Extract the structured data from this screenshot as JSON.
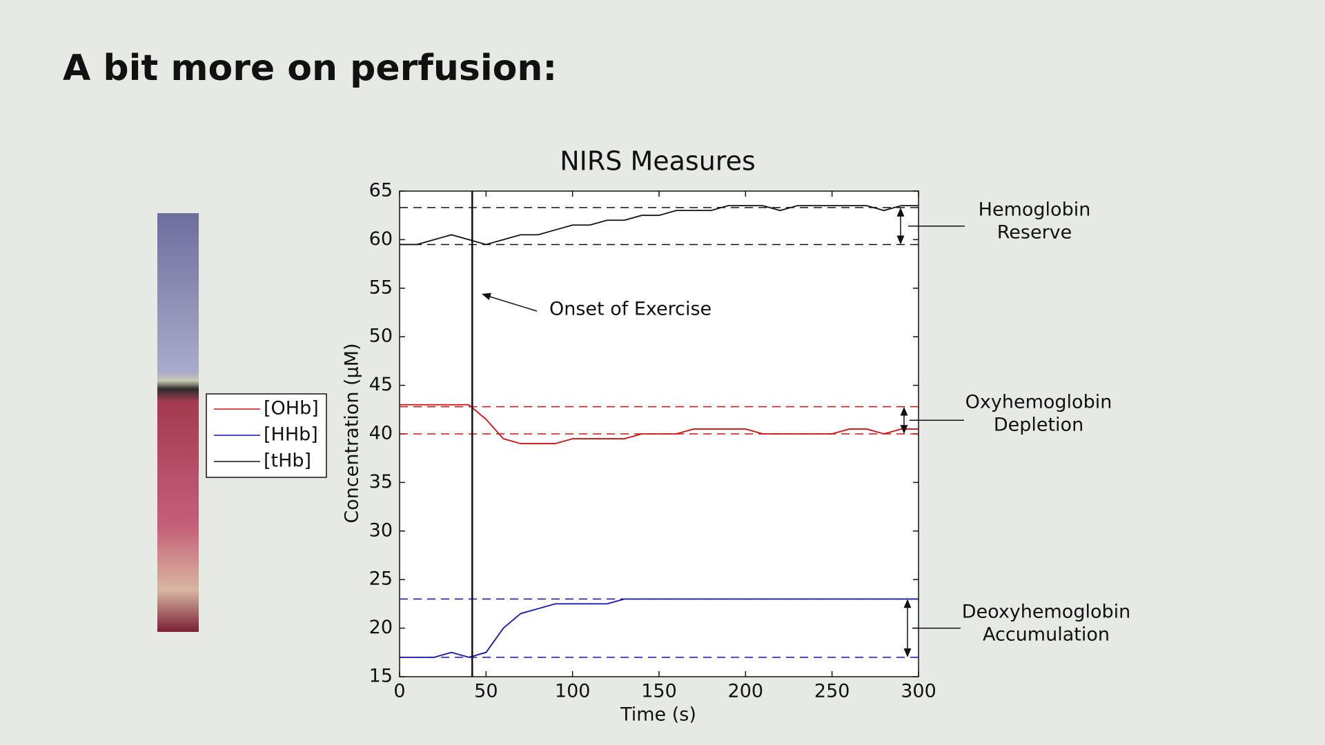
{
  "slide_title": "A bit more on perfusion:",
  "chart_data": {
    "type": "line",
    "title": "NIRS Measures",
    "x_label": "Time (s)",
    "y_label": "Concentration (μM)",
    "x": [
      0,
      10,
      20,
      30,
      40,
      50,
      60,
      70,
      80,
      90,
      100,
      110,
      120,
      130,
      140,
      150,
      160,
      170,
      180,
      190,
      200,
      210,
      220,
      230,
      240,
      250,
      260,
      270,
      280,
      290,
      300
    ],
    "series": [
      {
        "name": "[OHb]",
        "color": "#d01010",
        "values": [
          43,
          43,
          43,
          43,
          43,
          41.5,
          39.5,
          39,
          39,
          39,
          39.5,
          39.5,
          39.5,
          39.5,
          40,
          40,
          40,
          40.5,
          40.5,
          40.5,
          40.5,
          40,
          40,
          40,
          40,
          40,
          40.5,
          40.5,
          40,
          40.5,
          40.5
        ]
      },
      {
        "name": "[HHb]",
        "color": "#1010b0",
        "values": [
          17,
          17,
          17,
          17.5,
          17,
          17.5,
          20,
          21.5,
          22,
          22.5,
          22.5,
          22.5,
          22.5,
          23,
          23,
          23,
          23,
          23,
          23,
          23,
          23,
          23,
          23,
          23,
          23,
          23,
          23,
          23,
          23,
          23,
          23
        ]
      },
      {
        "name": "[tHb]",
        "color": "#111111",
        "values": [
          59.5,
          59.5,
          60,
          60.5,
          60,
          59.5,
          60,
          60.5,
          60.5,
          61,
          61.5,
          61.5,
          62,
          62,
          62.5,
          62.5,
          63,
          63,
          63,
          63.5,
          63.5,
          63.5,
          63,
          63.5,
          63.5,
          63.5,
          63.5,
          63.5,
          63,
          63.5,
          63.5
        ]
      }
    ],
    "reference_lines": [
      {
        "y": 63.3,
        "color": "#111111"
      },
      {
        "y": 59.5,
        "color": "#111111"
      },
      {
        "y": 42.8,
        "color": "#d01010"
      },
      {
        "y": 40,
        "color": "#d01010"
      },
      {
        "y": 23,
        "color": "#1010b0"
      },
      {
        "y": 17,
        "color": "#1010b0"
      }
    ],
    "event_x": 42,
    "annotations": [
      {
        "text": [
          "Onset of Exercise"
        ]
      },
      {
        "text": [
          "Hemoglobin",
          "Reserve"
        ]
      },
      {
        "text": [
          "Oxyhemoglobin",
          "Depletion"
        ]
      },
      {
        "text": [
          "Deoxyhemoglobin",
          "Accumulation"
        ]
      }
    ],
    "xlim": [
      0,
      300
    ],
    "xticks": [
      0,
      50,
      100,
      150,
      200,
      250,
      300
    ],
    "ylim": [
      15,
      65
    ],
    "yticks": [
      15,
      20,
      25,
      30,
      35,
      40,
      45,
      50,
      55,
      60,
      65
    ],
    "grid": false
  }
}
